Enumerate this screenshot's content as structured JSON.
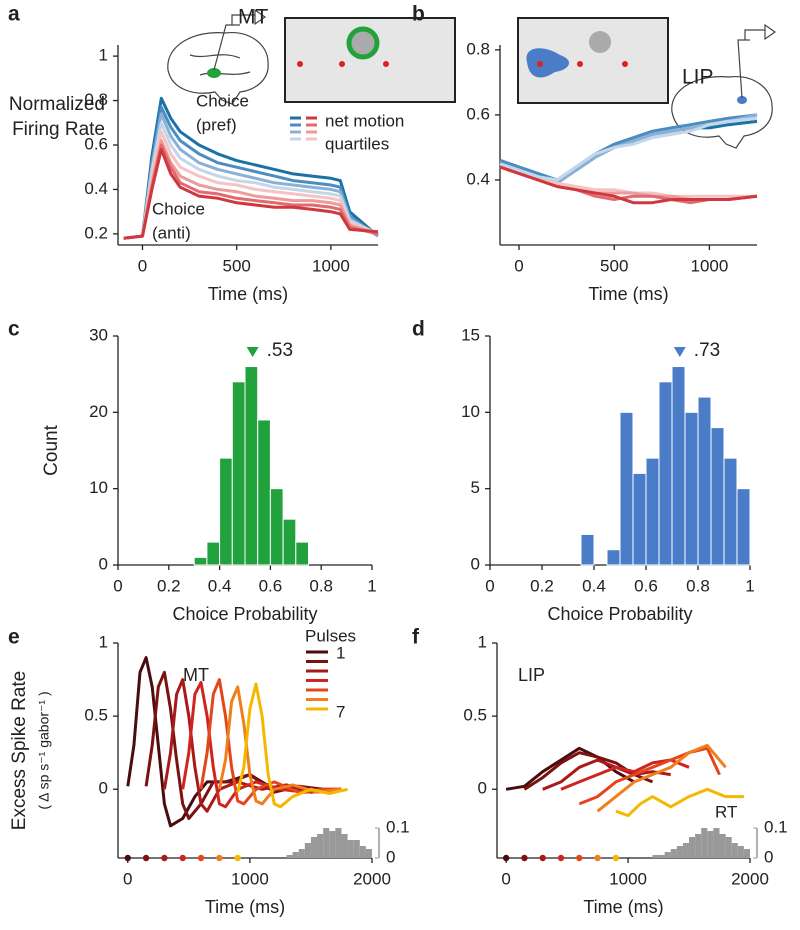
{
  "chart_data": [
    {
      "type": "line",
      "panel": "a",
      "region": {
        "text": "MT",
        "color": "#22a23c"
      },
      "xlabel": "Time (ms)",
      "ylabel": [
        "Normalized",
        "Firing Rate"
      ],
      "xlim": [
        -130,
        1250
      ],
      "ylim": [
        0.15,
        1.05
      ],
      "xticks": [
        0,
        500,
        1000
      ],
      "yticks": [
        0.2,
        0.4,
        0.6,
        0.8,
        1
      ],
      "x": [
        -100,
        0,
        50,
        100,
        150,
        200,
        300,
        400,
        500,
        600,
        700,
        800,
        900,
        1000,
        1050,
        1100,
        1250
      ],
      "series": [
        {
          "color": "#1a72a6",
          "values": [
            0.18,
            0.19,
            0.55,
            0.81,
            0.72,
            0.66,
            0.6,
            0.56,
            0.53,
            0.51,
            0.49,
            0.47,
            0.46,
            0.45,
            0.44,
            0.3,
            0.19
          ]
        },
        {
          "color": "#4b8dc0",
          "values": [
            0.18,
            0.19,
            0.52,
            0.77,
            0.68,
            0.62,
            0.56,
            0.52,
            0.5,
            0.48,
            0.46,
            0.44,
            0.43,
            0.42,
            0.41,
            0.28,
            0.19
          ]
        },
        {
          "color": "#8ab0d6",
          "values": [
            0.18,
            0.19,
            0.5,
            0.74,
            0.64,
            0.58,
            0.52,
            0.49,
            0.47,
            0.45,
            0.43,
            0.42,
            0.41,
            0.4,
            0.39,
            0.27,
            0.19
          ]
        },
        {
          "color": "#c4d6ea",
          "values": [
            0.18,
            0.19,
            0.48,
            0.7,
            0.6,
            0.54,
            0.49,
            0.46,
            0.44,
            0.43,
            0.41,
            0.4,
            0.39,
            0.38,
            0.37,
            0.26,
            0.2
          ]
        },
        {
          "color": "#f4c4c4",
          "values": [
            0.18,
            0.19,
            0.46,
            0.66,
            0.56,
            0.5,
            0.46,
            0.43,
            0.42,
            0.4,
            0.39,
            0.38,
            0.37,
            0.36,
            0.35,
            0.25,
            0.2
          ]
        },
        {
          "color": "#ec9a9a",
          "values": [
            0.18,
            0.19,
            0.43,
            0.62,
            0.52,
            0.46,
            0.42,
            0.4,
            0.39,
            0.37,
            0.36,
            0.35,
            0.35,
            0.34,
            0.33,
            0.24,
            0.2
          ]
        },
        {
          "color": "#e06a70",
          "values": [
            0.18,
            0.19,
            0.41,
            0.6,
            0.5,
            0.43,
            0.39,
            0.38,
            0.36,
            0.35,
            0.34,
            0.33,
            0.33,
            0.32,
            0.31,
            0.23,
            0.2
          ]
        },
        {
          "color": "#d03840",
          "values": [
            0.18,
            0.19,
            0.4,
            0.58,
            0.47,
            0.41,
            0.37,
            0.36,
            0.34,
            0.33,
            0.32,
            0.32,
            0.31,
            0.3,
            0.29,
            0.22,
            0.21
          ]
        }
      ],
      "annotations": [
        {
          "text": [
            "Choice",
            "(pref)"
          ],
          "color": "#1a7aa8"
        },
        {
          "text": [
            "Choice",
            "(anti)"
          ],
          "color": "#e04050"
        }
      ],
      "legend": [
        "net motion",
        "quartiles"
      ]
    },
    {
      "type": "line",
      "panel": "b",
      "region": {
        "text": "LIP",
        "color": "#4a7cc8"
      },
      "xlabel": "Time (ms)",
      "xlim": [
        -100,
        1250
      ],
      "ylim": [
        0.2,
        0.815
      ],
      "xticks": [
        0,
        500,
        1000
      ],
      "yticks": [
        0.4,
        0.6,
        0.8
      ],
      "x": [
        -100,
        0,
        100,
        200,
        300,
        400,
        500,
        600,
        700,
        800,
        900,
        1000,
        1100,
        1250
      ],
      "series": [
        {
          "color": "#1a72a6",
          "values": [
            0.46,
            0.44,
            0.42,
            0.4,
            0.43,
            0.47,
            0.5,
            0.52,
            0.54,
            0.55,
            0.56,
            0.56,
            0.57,
            0.58
          ]
        },
        {
          "color": "#4b8dc0",
          "values": [
            0.46,
            0.44,
            0.42,
            0.4,
            0.44,
            0.48,
            0.51,
            0.53,
            0.55,
            0.56,
            0.57,
            0.58,
            0.59,
            0.6
          ]
        },
        {
          "color": "#8ab0d6",
          "values": [
            0.45,
            0.43,
            0.41,
            0.39,
            0.43,
            0.47,
            0.5,
            0.52,
            0.54,
            0.55,
            0.56,
            0.57,
            0.58,
            0.6
          ]
        },
        {
          "color": "#c4d6ea",
          "values": [
            0.45,
            0.43,
            0.41,
            0.4,
            0.44,
            0.48,
            0.5,
            0.51,
            0.53,
            0.54,
            0.55,
            0.57,
            0.58,
            0.59
          ]
        },
        {
          "color": "#f4c4c4",
          "values": [
            0.44,
            0.42,
            0.4,
            0.39,
            0.38,
            0.37,
            0.37,
            0.36,
            0.36,
            0.35,
            0.35,
            0.35,
            0.35,
            0.35
          ]
        },
        {
          "color": "#ec9a9a",
          "values": [
            0.44,
            0.42,
            0.4,
            0.38,
            0.37,
            0.36,
            0.36,
            0.36,
            0.35,
            0.35,
            0.34,
            0.34,
            0.34,
            0.35
          ]
        },
        {
          "color": "#e06a70",
          "values": [
            0.44,
            0.42,
            0.4,
            0.38,
            0.37,
            0.35,
            0.34,
            0.35,
            0.35,
            0.34,
            0.33,
            0.34,
            0.34,
            0.35
          ]
        },
        {
          "color": "#d03840",
          "values": [
            0.44,
            0.42,
            0.4,
            0.38,
            0.37,
            0.36,
            0.35,
            0.33,
            0.33,
            0.34,
            0.34,
            0.34,
            0.34,
            0.35
          ]
        }
      ]
    },
    {
      "type": "histogram",
      "panel": "c",
      "xlabel": "Choice Probability",
      "ylabel": [
        "Count"
      ],
      "color": "#22a23c",
      "xlim": [
        0,
        1
      ],
      "ylim": [
        0,
        30
      ],
      "xticks": [
        0,
        0.2,
        0.4,
        0.6,
        0.8,
        1
      ],
      "yticks": [
        0,
        10,
        20,
        30
      ],
      "bins": [
        0,
        0.05,
        0.1,
        0.15,
        0.2,
        0.25,
        0.3,
        0.35,
        0.4,
        0.45,
        0.5,
        0.55,
        0.6,
        0.65,
        0.7,
        0.75,
        0.8,
        0.85,
        0.9,
        0.95,
        1
      ],
      "values": [
        0,
        0,
        0,
        0,
        0,
        0,
        1,
        3,
        14,
        24,
        26,
        19,
        10,
        6,
        3,
        0,
        0,
        0,
        0,
        0
      ],
      "median": {
        "value": 0.53,
        "label": ".53"
      }
    },
    {
      "type": "histogram",
      "panel": "d",
      "xlabel": "Choice Probability",
      "color": "#4a7cc8",
      "xlim": [
        0,
        1
      ],
      "ylim": [
        0,
        15
      ],
      "xticks": [
        0,
        0.2,
        0.4,
        0.6,
        0.8,
        1
      ],
      "yticks": [
        0,
        5,
        10,
        15
      ],
      "bins": [
        0,
        0.05,
        0.1,
        0.15,
        0.2,
        0.25,
        0.3,
        0.35,
        0.4,
        0.45,
        0.5,
        0.55,
        0.6,
        0.65,
        0.7,
        0.75,
        0.8,
        0.85,
        0.9,
        0.95,
        1
      ],
      "values": [
        0,
        0,
        0,
        0,
        0,
        0,
        0,
        2,
        0,
        1,
        10,
        6,
        7,
        12,
        13,
        10,
        11,
        9,
        7,
        5
      ],
      "median": {
        "value": 0.73,
        "label": ".73"
      }
    },
    {
      "type": "line",
      "panel": "e",
      "title": "MT",
      "xlabel": "Time (ms)",
      "ylabel": [
        "Excess Spike Rate",
        "( Δ sp s⁻¹ gabor⁻¹ )"
      ],
      "xlim": [
        -80,
        2000
      ],
      "ylim": [
        -0.47,
        1.0
      ],
      "xticks": [
        0,
        1000,
        2000
      ],
      "yticks": [
        0,
        0.5,
        1
      ],
      "y2lim": [
        0,
        0.1
      ],
      "y2ticks": [
        0,
        0.1
      ],
      "legend_title": "Pulses",
      "legend_labels": [
        "1",
        "7"
      ],
      "pulse_onsets": [
        0,
        150,
        300,
        450,
        600,
        750,
        900
      ],
      "series": [
        {
          "color": "#4a0c0c",
          "x": [
            0,
            50,
            100,
            150,
            200,
            250,
            300,
            350,
            450,
            550,
            650,
            800,
            1000,
            1200,
            1400,
            1600,
            1750
          ],
          "values": [
            0.02,
            0.3,
            0.8,
            0.9,
            0.7,
            0.3,
            -0.1,
            -0.25,
            -0.2,
            -0.05,
            0.05,
            0.05,
            0.1,
            0.0,
            0.02,
            -0.02,
            0.0
          ]
        },
        {
          "color": "#7a1212",
          "x": [
            150,
            200,
            250,
            300,
            350,
            400,
            450,
            500,
            600,
            700,
            850,
            1000,
            1200,
            1400,
            1600,
            1750
          ],
          "values": [
            0.02,
            0.3,
            0.7,
            0.8,
            0.55,
            0.2,
            -0.1,
            -0.2,
            -0.1,
            0.05,
            0.05,
            0.1,
            -0.02,
            0.02,
            0.0,
            0.0
          ]
        },
        {
          "color": "#a81a1a",
          "x": [
            300,
            350,
            400,
            450,
            500,
            550,
            600,
            650,
            750,
            900,
            1100,
            1300,
            1500,
            1700
          ],
          "values": [
            0.0,
            0.25,
            0.65,
            0.75,
            0.5,
            0.15,
            -0.1,
            -0.15,
            0.0,
            0.05,
            0.0,
            0.03,
            -0.02,
            0.0
          ]
        },
        {
          "color": "#d02420",
          "x": [
            450,
            500,
            550,
            600,
            650,
            700,
            750,
            800,
            900,
            1050,
            1250,
            1450,
            1700
          ],
          "values": [
            0.0,
            0.25,
            0.65,
            0.73,
            0.5,
            0.15,
            -0.1,
            -0.12,
            0.0,
            0.05,
            0.0,
            -0.02,
            0.0
          ]
        },
        {
          "color": "#e4461c",
          "x": [
            600,
            650,
            700,
            750,
            800,
            850,
            900,
            950,
            1050,
            1200,
            1400,
            1600,
            1750
          ],
          "values": [
            0.0,
            0.25,
            0.65,
            0.75,
            0.5,
            0.15,
            -0.08,
            -0.1,
            0.0,
            0.05,
            -0.02,
            0.0,
            0.0
          ]
        },
        {
          "color": "#f07e1c",
          "x": [
            750,
            800,
            850,
            900,
            950,
            1000,
            1050,
            1100,
            1200,
            1350,
            1550,
            1750
          ],
          "values": [
            0.0,
            0.2,
            0.6,
            0.7,
            0.45,
            0.1,
            -0.08,
            -0.1,
            0.0,
            0.03,
            -0.02,
            0.0
          ]
        },
        {
          "color": "#f5b800",
          "x": [
            900,
            950,
            1000,
            1050,
            1100,
            1150,
            1200,
            1250,
            1350,
            1500,
            1650,
            1800
          ],
          "values": [
            -0.02,
            0.15,
            0.55,
            0.72,
            0.5,
            0.1,
            -0.1,
            -0.12,
            -0.05,
            0.0,
            -0.03,
            0.0
          ]
        }
      ],
      "rt_hist": {
        "color": "#999999",
        "bins": [
          1300,
          1350,
          1400,
          1450,
          1500,
          1550,
          1600,
          1650,
          1700,
          1750,
          1800,
          1850,
          1900,
          1950,
          2000
        ],
        "values": [
          0.01,
          0.02,
          0.03,
          0.05,
          0.07,
          0.08,
          0.1,
          0.09,
          0.1,
          0.08,
          0.06,
          0.06,
          0.04,
          0.03
        ]
      }
    },
    {
      "type": "line",
      "panel": "f",
      "title": "LIP",
      "xlabel": "Time (ms)",
      "xlim": [
        -75,
        2000
      ],
      "ylim": [
        -0.47,
        1.0
      ],
      "xticks": [
        0,
        1000,
        2000
      ],
      "yticks": [
        0,
        0.5,
        1
      ],
      "y2lim": [
        0,
        0.1
      ],
      "y2ticks": [
        0,
        0.1
      ],
      "pulse_onsets": [
        0,
        150,
        300,
        450,
        600,
        750,
        900
      ],
      "series": [
        {
          "color": "#4a0c0c",
          "x": [
            0,
            150,
            300,
            450,
            600,
            750,
            900,
            1050
          ],
          "values": [
            0,
            0.02,
            0.12,
            0.2,
            0.28,
            0.22,
            0.12,
            0.05
          ]
        },
        {
          "color": "#7a1212",
          "x": [
            150,
            300,
            450,
            600,
            750,
            900,
            1050,
            1200
          ],
          "values": [
            0.0,
            0.08,
            0.18,
            0.25,
            0.22,
            0.18,
            0.1,
            0.05
          ]
        },
        {
          "color": "#a81a1a",
          "x": [
            300,
            450,
            600,
            750,
            900,
            1050,
            1200,
            1350
          ],
          "values": [
            0.0,
            0.05,
            0.15,
            0.2,
            0.15,
            0.1,
            0.12,
            0.1
          ]
        },
        {
          "color": "#d02420",
          "x": [
            450,
            600,
            750,
            900,
            1050,
            1200,
            1350,
            1500
          ],
          "values": [
            0.0,
            0.05,
            0.1,
            0.15,
            0.12,
            0.18,
            0.2,
            0.15
          ]
        },
        {
          "color": "#e4461c",
          "x": [
            600,
            750,
            900,
            1050,
            1200,
            1350,
            1500,
            1650,
            1750
          ],
          "values": [
            -0.1,
            -0.05,
            0.05,
            0.1,
            0.15,
            0.2,
            0.25,
            0.28,
            0.1
          ]
        },
        {
          "color": "#f07e1c",
          "x": [
            750,
            900,
            1050,
            1200,
            1350,
            1500,
            1650,
            1800
          ],
          "values": [
            -0.15,
            -0.05,
            0.05,
            0.1,
            0.15,
            0.25,
            0.3,
            0.15
          ]
        },
        {
          "color": "#f5b800",
          "x": [
            900,
            1000,
            1100,
            1200,
            1350,
            1500,
            1650,
            1800,
            1950
          ],
          "values": [
            -0.15,
            -0.18,
            -0.1,
            -0.05,
            -0.12,
            -0.05,
            0.0,
            -0.05,
            -0.05
          ]
        }
      ],
      "rt_hist": {
        "color": "#999999",
        "label": "RT",
        "bins": [
          1200,
          1250,
          1300,
          1350,
          1400,
          1450,
          1500,
          1550,
          1600,
          1650,
          1700,
          1750,
          1800,
          1850,
          1900,
          1950,
          2000
        ],
        "values": [
          0.01,
          0.01,
          0.02,
          0.03,
          0.04,
          0.05,
          0.07,
          0.08,
          0.1,
          0.09,
          0.1,
          0.08,
          0.07,
          0.05,
          0.04,
          0.03
        ]
      }
    }
  ]
}
